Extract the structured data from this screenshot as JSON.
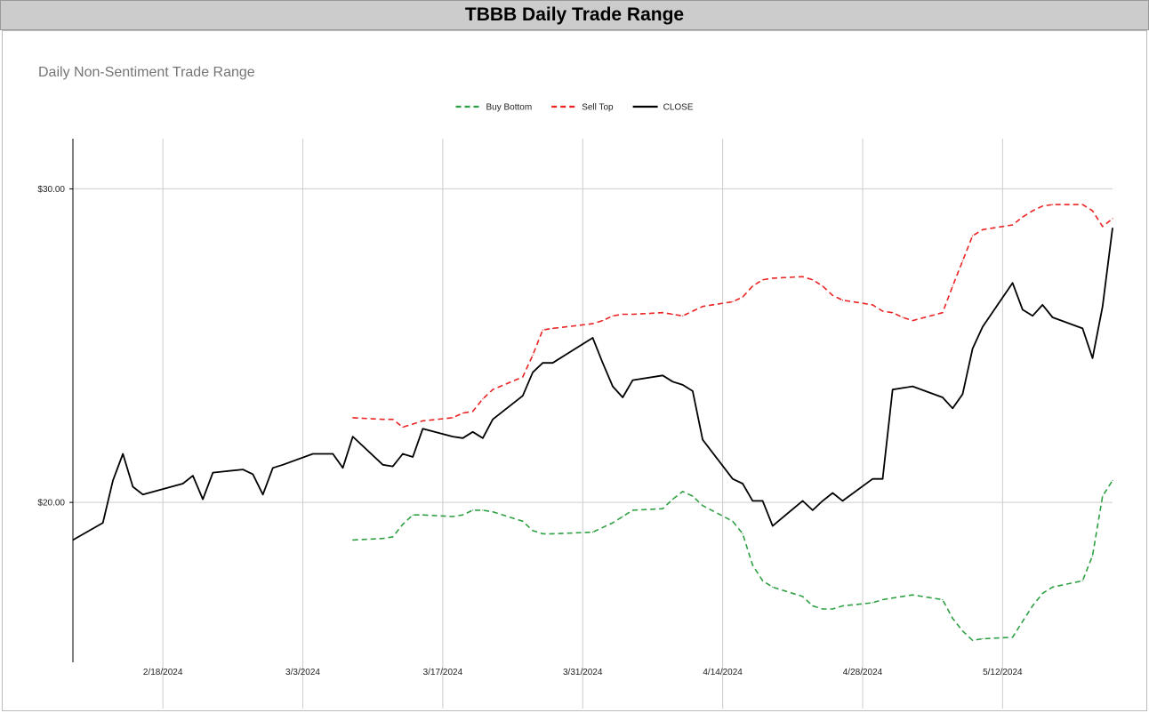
{
  "header": {
    "title": "TBBB Daily Trade Range"
  },
  "colors": {
    "buy_bottom": "#2ea043",
    "sell_top": "#ea2222",
    "close": "#000000",
    "grid": "#cccccc",
    "header_bg": "#cccccc"
  },
  "chart_data": {
    "type": "line",
    "title": "Daily Non-Sentiment Trade Range",
    "xlabel": "",
    "ylabel": "",
    "x_range": [
      "2024-02-09",
      "2024-05-23"
    ],
    "ylim": [
      14.9,
      31.6
    ],
    "x_ticks": [
      {
        "date": "2024-02-18",
        "label": "2/18/2024"
      },
      {
        "date": "2024-03-03",
        "label": "3/3/2024"
      },
      {
        "date": "2024-03-17",
        "label": "3/17/2024"
      },
      {
        "date": "2024-03-31",
        "label": "3/31/2024"
      },
      {
        "date": "2024-04-14",
        "label": "4/14/2024"
      },
      {
        "date": "2024-04-28",
        "label": "4/28/2024"
      },
      {
        "date": "2024-05-12",
        "label": "5/12/2024"
      }
    ],
    "y_ticks": [
      {
        "value": 20,
        "label": "$20.00"
      },
      {
        "value": 30,
        "label": "$30.00"
      }
    ],
    "grid": true,
    "legend_position": "top-center",
    "series": [
      {
        "name": "Buy Bottom",
        "style": "dashed",
        "color": "#2ea043",
        "points": [
          [
            "2024-03-08",
            18.8
          ],
          [
            "2024-03-11",
            18.85
          ],
          [
            "2024-03-12",
            18.9
          ],
          [
            "2024-03-13",
            19.3
          ],
          [
            "2024-03-14",
            19.6
          ],
          [
            "2024-03-15",
            19.6
          ],
          [
            "2024-03-18",
            19.55
          ],
          [
            "2024-03-19",
            19.6
          ],
          [
            "2024-03-20",
            19.75
          ],
          [
            "2024-03-21",
            19.75
          ],
          [
            "2024-03-22",
            19.7
          ],
          [
            "2024-03-25",
            19.4
          ],
          [
            "2024-03-26",
            19.1
          ],
          [
            "2024-03-27",
            19.0
          ],
          [
            "2024-03-28",
            19.0
          ],
          [
            "2024-04-01",
            19.05
          ],
          [
            "2024-04-02",
            19.2
          ],
          [
            "2024-04-03",
            19.35
          ],
          [
            "2024-04-04",
            19.55
          ],
          [
            "2024-04-05",
            19.75
          ],
          [
            "2024-04-08",
            19.8
          ],
          [
            "2024-04-09",
            20.1
          ],
          [
            "2024-04-10",
            20.35
          ],
          [
            "2024-04-11",
            20.2
          ],
          [
            "2024-04-12",
            19.9
          ],
          [
            "2024-04-15",
            19.4
          ],
          [
            "2024-04-16",
            19.0
          ],
          [
            "2024-04-17",
            18.0
          ],
          [
            "2024-04-18",
            17.5
          ],
          [
            "2024-04-19",
            17.3
          ],
          [
            "2024-04-22",
            17.0
          ],
          [
            "2024-04-23",
            16.7
          ],
          [
            "2024-04-24",
            16.6
          ],
          [
            "2024-04-25",
            16.6
          ],
          [
            "2024-04-26",
            16.7
          ],
          [
            "2024-04-29",
            16.8
          ],
          [
            "2024-04-30",
            16.9
          ],
          [
            "2024-05-01",
            16.95
          ],
          [
            "2024-05-02",
            17.0
          ],
          [
            "2024-05-03",
            17.05
          ],
          [
            "2024-05-06",
            16.9
          ],
          [
            "2024-05-07",
            16.3
          ],
          [
            "2024-05-08",
            15.9
          ],
          [
            "2024-05-09",
            15.6
          ],
          [
            "2024-05-10",
            15.65
          ],
          [
            "2024-05-13",
            15.7
          ],
          [
            "2024-05-14",
            16.2
          ],
          [
            "2024-05-15",
            16.7
          ],
          [
            "2024-05-16",
            17.1
          ],
          [
            "2024-05-17",
            17.3
          ],
          [
            "2024-05-20",
            17.5
          ],
          [
            "2024-05-21",
            18.3
          ],
          [
            "2024-05-22",
            20.2
          ],
          [
            "2024-05-23",
            20.7
          ]
        ]
      },
      {
        "name": "Sell Top",
        "style": "dashed",
        "color": "#ea2222",
        "points": [
          [
            "2024-03-08",
            22.7
          ],
          [
            "2024-03-11",
            22.65
          ],
          [
            "2024-03-12",
            22.65
          ],
          [
            "2024-03-13",
            22.4
          ],
          [
            "2024-03-14",
            22.5
          ],
          [
            "2024-03-15",
            22.6
          ],
          [
            "2024-03-18",
            22.7
          ],
          [
            "2024-03-19",
            22.85
          ],
          [
            "2024-03-20",
            22.9
          ],
          [
            "2024-03-21",
            23.3
          ],
          [
            "2024-03-22",
            23.6
          ],
          [
            "2024-03-25",
            24.0
          ],
          [
            "2024-03-26",
            24.7
          ],
          [
            "2024-03-27",
            25.5
          ],
          [
            "2024-03-28",
            25.55
          ],
          [
            "2024-04-01",
            25.7
          ],
          [
            "2024-04-02",
            25.8
          ],
          [
            "2024-04-03",
            25.95
          ],
          [
            "2024-04-04",
            26.0
          ],
          [
            "2024-04-05",
            26.0
          ],
          [
            "2024-04-08",
            26.05
          ],
          [
            "2024-04-09",
            26.0
          ],
          [
            "2024-04-10",
            25.95
          ],
          [
            "2024-04-11",
            26.1
          ],
          [
            "2024-04-12",
            26.25
          ],
          [
            "2024-04-15",
            26.4
          ],
          [
            "2024-04-16",
            26.55
          ],
          [
            "2024-04-17",
            26.9
          ],
          [
            "2024-04-18",
            27.1
          ],
          [
            "2024-04-19",
            27.15
          ],
          [
            "2024-04-22",
            27.2
          ],
          [
            "2024-04-23",
            27.1
          ],
          [
            "2024-04-24",
            26.9
          ],
          [
            "2024-04-25",
            26.6
          ],
          [
            "2024-04-26",
            26.45
          ],
          [
            "2024-04-29",
            26.3
          ],
          [
            "2024-04-30",
            26.1
          ],
          [
            "2024-05-01",
            26.05
          ],
          [
            "2024-05-02",
            25.9
          ],
          [
            "2024-05-03",
            25.8
          ],
          [
            "2024-05-06",
            26.05
          ],
          [
            "2024-05-07",
            26.9
          ],
          [
            "2024-05-08",
            27.7
          ],
          [
            "2024-05-09",
            28.5
          ],
          [
            "2024-05-10",
            28.7
          ],
          [
            "2024-05-13",
            28.85
          ],
          [
            "2024-05-14",
            29.1
          ],
          [
            "2024-05-15",
            29.3
          ],
          [
            "2024-05-16",
            29.45
          ],
          [
            "2024-05-17",
            29.5
          ],
          [
            "2024-05-20",
            29.5
          ],
          [
            "2024-05-21",
            29.3
          ],
          [
            "2024-05-22",
            28.8
          ],
          [
            "2024-05-23",
            29.05
          ]
        ]
      },
      {
        "name": "CLOSE",
        "style": "solid",
        "color": "#000000",
        "points": [
          [
            "2024-02-09",
            18.8
          ],
          [
            "2024-02-12",
            19.35
          ],
          [
            "2024-02-13",
            20.7
          ],
          [
            "2024-02-14",
            21.55
          ],
          [
            "2024-02-15",
            20.5
          ],
          [
            "2024-02-16",
            20.25
          ],
          [
            "2024-02-20",
            20.6
          ],
          [
            "2024-02-21",
            20.85
          ],
          [
            "2024-02-22",
            20.1
          ],
          [
            "2024-02-23",
            20.95
          ],
          [
            "2024-02-26",
            21.05
          ],
          [
            "2024-02-27",
            20.9
          ],
          [
            "2024-02-28",
            20.25
          ],
          [
            "2024-02-29",
            21.1
          ],
          [
            "2024-03-01",
            21.2
          ],
          [
            "2024-03-04",
            21.55
          ],
          [
            "2024-03-05",
            21.55
          ],
          [
            "2024-03-06",
            21.55
          ],
          [
            "2024-03-07",
            21.1
          ],
          [
            "2024-03-08",
            22.1
          ],
          [
            "2024-03-11",
            21.2
          ],
          [
            "2024-03-12",
            21.15
          ],
          [
            "2024-03-13",
            21.55
          ],
          [
            "2024-03-14",
            21.45
          ],
          [
            "2024-03-15",
            22.35
          ],
          [
            "2024-03-18",
            22.1
          ],
          [
            "2024-03-19",
            22.05
          ],
          [
            "2024-03-20",
            22.25
          ],
          [
            "2024-03-21",
            22.05
          ],
          [
            "2024-03-22",
            22.65
          ],
          [
            "2024-03-25",
            23.4
          ],
          [
            "2024-03-26",
            24.15
          ],
          [
            "2024-03-27",
            24.45
          ],
          [
            "2024-03-28",
            24.45
          ],
          [
            "2024-04-01",
            25.25
          ],
          [
            "2024-04-02",
            24.45
          ],
          [
            "2024-04-03",
            23.7
          ],
          [
            "2024-04-04",
            23.35
          ],
          [
            "2024-04-05",
            23.9
          ],
          [
            "2024-04-08",
            24.05
          ],
          [
            "2024-04-09",
            23.85
          ],
          [
            "2024-04-10",
            23.75
          ],
          [
            "2024-04-11",
            23.55
          ],
          [
            "2024-04-12",
            22.0
          ],
          [
            "2024-04-15",
            20.75
          ],
          [
            "2024-04-16",
            20.6
          ],
          [
            "2024-04-17",
            20.05
          ],
          [
            "2024-04-18",
            20.05
          ],
          [
            "2024-04-19",
            19.25
          ],
          [
            "2024-04-22",
            20.05
          ],
          [
            "2024-04-23",
            19.75
          ],
          [
            "2024-04-24",
            20.05
          ],
          [
            "2024-04-25",
            20.3
          ],
          [
            "2024-04-26",
            20.05
          ],
          [
            "2024-04-29",
            20.75
          ],
          [
            "2024-04-30",
            20.75
          ],
          [
            "2024-05-01",
            23.6
          ],
          [
            "2024-05-02",
            23.65
          ],
          [
            "2024-05-03",
            23.7
          ],
          [
            "2024-05-06",
            23.35
          ],
          [
            "2024-05-07",
            23.0
          ],
          [
            "2024-05-08",
            23.45
          ],
          [
            "2024-05-09",
            24.9
          ],
          [
            "2024-05-10",
            25.6
          ],
          [
            "2024-05-13",
            27.0
          ],
          [
            "2024-05-14",
            26.15
          ],
          [
            "2024-05-15",
            25.95
          ],
          [
            "2024-05-16",
            26.3
          ],
          [
            "2024-05-17",
            25.9
          ],
          [
            "2024-05-20",
            25.55
          ],
          [
            "2024-05-21",
            24.6
          ],
          [
            "2024-05-22",
            26.25
          ],
          [
            "2024-05-23",
            28.75
          ]
        ]
      }
    ]
  }
}
